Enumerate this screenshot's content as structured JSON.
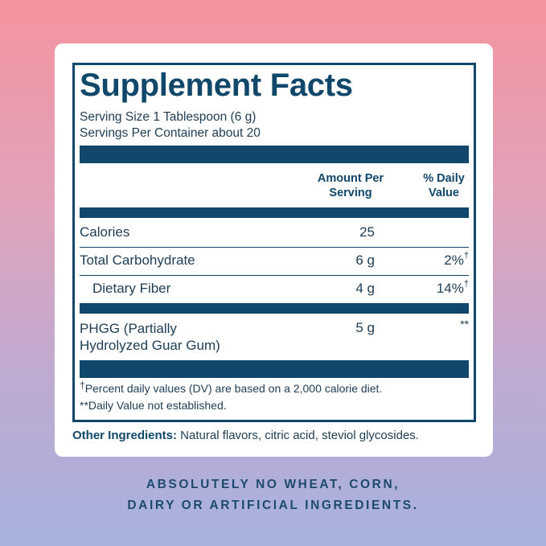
{
  "label": {
    "title": "Supplement Facts",
    "serving_size": "Serving Size 1 Tablespoon (6 g)",
    "servings_per_container": "Servings Per Container about 20",
    "header_amount_line1": "Amount Per",
    "header_amount_line2": "Serving",
    "header_dv_line1": "% Daily",
    "header_dv_line2": "Value",
    "rows": [
      {
        "name": "Calories",
        "amount": "25",
        "dv": "",
        "dv_mark": ""
      },
      {
        "name": "Total Carbohydrate",
        "amount": "6 g",
        "dv": "2%",
        "dv_mark": "†"
      },
      {
        "name": "Dietary Fiber",
        "amount": "4 g",
        "dv": "14%",
        "dv_mark": "†"
      },
      {
        "name_line1": "PHGG (Partially",
        "name_line2": "Hydrolyzed Guar Gum)",
        "amount": "5 g",
        "dv": "**",
        "dv_mark": ""
      }
    ],
    "footnote_mark": "†",
    "footnote_1": "Percent daily values (DV) are based on a 2,000 calorie diet.",
    "footnote_2": "**Daily Value not established."
  },
  "other_ingredients": {
    "heading": "Other Ingredients:",
    "text": " Natural flavors, citric acid, steviol glycosides."
  },
  "tagline": {
    "line1": "ABSOLUTELY NO WHEAT, CORN,",
    "line2": "DAIRY OR ARTIFICIAL INGREDIENTS."
  },
  "colors": {
    "navy": "#10476a",
    "bg_top": "#f4949f",
    "bg_bottom": "#a7b2df"
  }
}
